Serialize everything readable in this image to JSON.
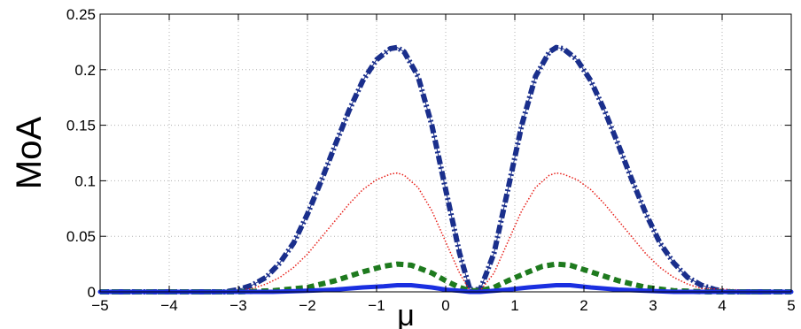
{
  "chart_data": {
    "type": "line",
    "title": "",
    "xlabel": "μ",
    "ylabel": "MoA",
    "xlim": [
      -5,
      5
    ],
    "ylim": [
      0,
      0.25
    ],
    "grid": true,
    "x_ticks": [
      "−5",
      "−4",
      "−3",
      "−2",
      "−1",
      "0",
      "1",
      "2",
      "3",
      "4",
      "5"
    ],
    "y_ticks": [
      "0",
      "0.05",
      "0.1",
      "0.15",
      "0.2",
      "0.25"
    ],
    "series": [
      {
        "style": "thick dash-dot",
        "color": "#1a2f8c",
        "x": [
          -5,
          -4,
          -3.2,
          -3,
          -2.8,
          -2.6,
          -2.4,
          -2.2,
          -2,
          -1.8,
          -1.6,
          -1.4,
          -1.2,
          -1,
          -0.8,
          -0.7,
          -0.6,
          -0.4,
          -0.2,
          0,
          0.2,
          0.35,
          0.5,
          0.7,
          0.9,
          1.1,
          1.3,
          1.5,
          1.6,
          1.7,
          1.9,
          2.1,
          2.3,
          2.5,
          2.7,
          2.9,
          3.1,
          3.3,
          3.5,
          3.7,
          3.9,
          4.1,
          5
        ],
        "y": [
          0,
          0,
          0,
          0.002,
          0.006,
          0.013,
          0.026,
          0.044,
          0.07,
          0.1,
          0.132,
          0.163,
          0.19,
          0.209,
          0.219,
          0.22,
          0.216,
          0.194,
          0.15,
          0.092,
          0.035,
          0.002,
          0.002,
          0.035,
          0.092,
          0.15,
          0.194,
          0.216,
          0.22,
          0.219,
          0.209,
          0.19,
          0.163,
          0.132,
          0.1,
          0.07,
          0.044,
          0.026,
          0.013,
          0.006,
          0.002,
          0,
          0
        ]
      },
      {
        "style": "dotted",
        "color": "#e8201a",
        "x": [
          -5,
          -3.2,
          -3,
          -2.8,
          -2.6,
          -2.4,
          -2.2,
          -2,
          -1.8,
          -1.6,
          -1.4,
          -1.2,
          -1,
          -0.8,
          -0.7,
          -0.6,
          -0.4,
          -0.2,
          0,
          0.2,
          0.35,
          0.5,
          0.7,
          0.9,
          1.1,
          1.3,
          1.5,
          1.6,
          1.7,
          1.9,
          2.1,
          2.3,
          2.5,
          2.7,
          2.9,
          3.1,
          3.3,
          3.5,
          3.7,
          5
        ],
        "y": [
          0,
          0,
          0.001,
          0.003,
          0.007,
          0.013,
          0.022,
          0.034,
          0.049,
          0.064,
          0.079,
          0.092,
          0.101,
          0.106,
          0.107,
          0.105,
          0.094,
          0.073,
          0.045,
          0.017,
          0.001,
          0.001,
          0.017,
          0.045,
          0.073,
          0.094,
          0.105,
          0.107,
          0.106,
          0.101,
          0.092,
          0.079,
          0.064,
          0.049,
          0.034,
          0.022,
          0.013,
          0.007,
          0.003,
          0
        ]
      },
      {
        "style": "thick dashed",
        "color": "#1e7a1e",
        "x": [
          -5,
          -3,
          -2.5,
          -2,
          -1.6,
          -1.2,
          -0.9,
          -0.7,
          -0.5,
          -0.2,
          0,
          0.2,
          0.35,
          0.5,
          0.7,
          0.9,
          1.2,
          1.4,
          1.6,
          1.8,
          2.1,
          2.5,
          2.9,
          3.3,
          3.8,
          5
        ],
        "y": [
          0,
          0,
          0.001,
          0.004,
          0.01,
          0.018,
          0.023,
          0.025,
          0.024,
          0.017,
          0.01,
          0.004,
          0.001,
          0.001,
          0.004,
          0.01,
          0.018,
          0.023,
          0.025,
          0.024,
          0.018,
          0.01,
          0.004,
          0.001,
          0,
          0
        ]
      },
      {
        "style": "thick solid",
        "color": "#1a2fe0",
        "x": [
          -5,
          -3,
          -2.5,
          -2,
          -1.6,
          -1.2,
          -0.9,
          -0.7,
          -0.5,
          -0.2,
          0,
          0.2,
          0.35,
          0.5,
          0.7,
          0.9,
          1.2,
          1.4,
          1.6,
          1.8,
          2.1,
          2.5,
          2.9,
          3.3,
          3.8,
          5
        ],
        "y": [
          0,
          0,
          0,
          0.001,
          0.002,
          0.004,
          0.005,
          0.006,
          0.006,
          0.004,
          0.002,
          0.001,
          0,
          0,
          0.001,
          0.002,
          0.004,
          0.005,
          0.006,
          0.006,
          0.004,
          0.002,
          0.001,
          0,
          0,
          0
        ]
      }
    ]
  }
}
